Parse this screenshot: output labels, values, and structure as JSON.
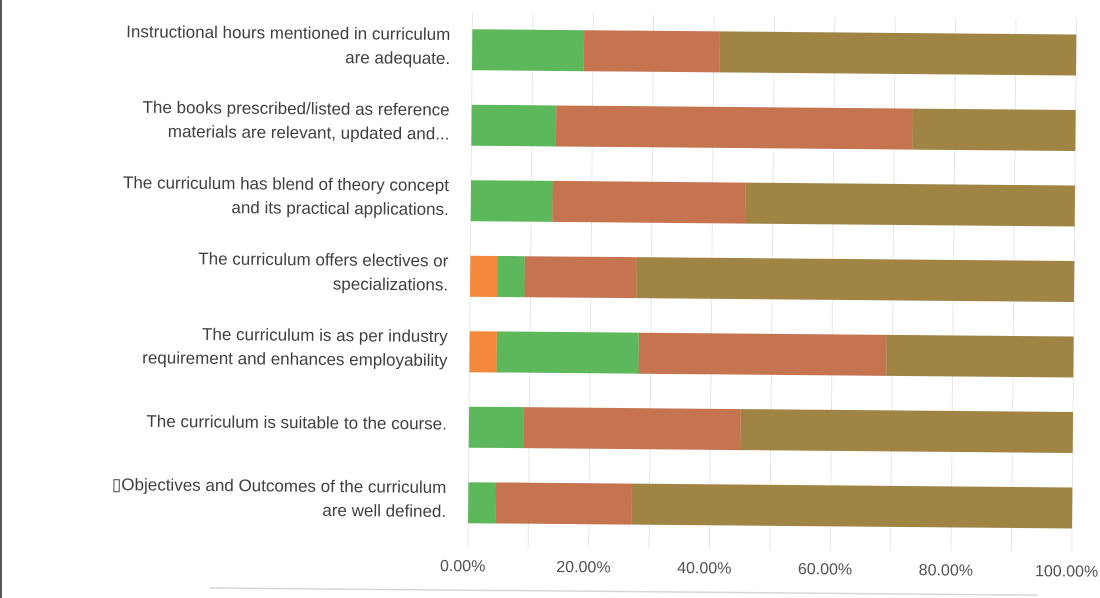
{
  "chart_data": {
    "type": "bar",
    "orientation": "horizontal",
    "stacked": true,
    "categories": [
      [
        "Instructional hours mentioned in curriculum",
        "are adequate."
      ],
      [
        "The books prescribed/listed as reference",
        "materials are relevant, updated and..."
      ],
      [
        "The curriculum has blend of theory concept",
        "and its practical applications."
      ],
      [
        "The curriculum offers electives or",
        "specializations."
      ],
      [
        "The curriculum is as per industry",
        "requirement and enhances employability"
      ],
      [
        "The curriculum is suitable to the course."
      ],
      [
        "▯Objectives and Outcomes of the curriculum",
        "are well defined."
      ]
    ],
    "series": [
      {
        "color": "#f4883a",
        "values": [
          0,
          0,
          0,
          4.5,
          4.5,
          0,
          0
        ]
      },
      {
        "color": "#5cb85a",
        "values": [
          18.5,
          14,
          13.5,
          4.5,
          23.5,
          9,
          4.5
        ]
      },
      {
        "color": "#c5744f",
        "values": [
          22.5,
          59,
          32,
          18.5,
          41,
          36,
          22.5
        ]
      },
      {
        "color": "#9f8444",
        "values": [
          59,
          27,
          54.5,
          72.5,
          31,
          55,
          73
        ]
      }
    ],
    "x_ticks": [
      "0.00%",
      "20.00%",
      "40.00%",
      "60.00%",
      "80.00%",
      "100.00%"
    ],
    "xlim": [
      0,
      100
    ],
    "grid": true,
    "legend": "none"
  }
}
